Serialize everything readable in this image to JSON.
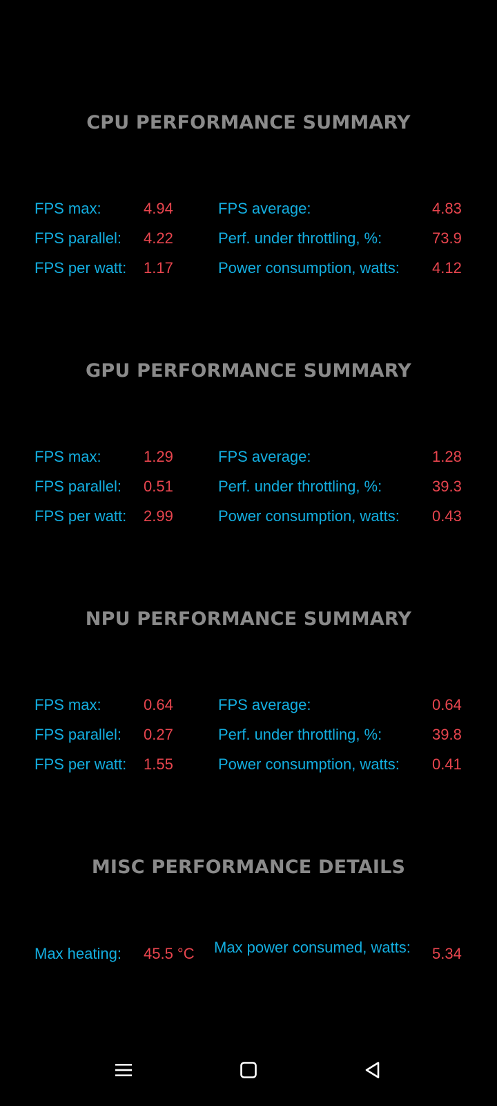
{
  "sections": [
    {
      "title": "CPU PERFORMANCE SUMMARY",
      "rows": [
        {
          "left_label": "FPS max:",
          "left_value": "4.94",
          "right_label": "FPS average:",
          "right_value": "4.83"
        },
        {
          "left_label": "FPS parallel:",
          "left_value": "4.22",
          "right_label": "Perf. under throttling, %:",
          "right_value": "73.9"
        },
        {
          "left_label": "FPS per watt:",
          "left_value": "1.17",
          "right_label": "Power consumption, watts:",
          "right_value": "4.12"
        }
      ]
    },
    {
      "title": "GPU PERFORMANCE SUMMARY",
      "rows": [
        {
          "left_label": "FPS max:",
          "left_value": "1.29",
          "right_label": "FPS average:",
          "right_value": "1.28"
        },
        {
          "left_label": "FPS parallel:",
          "left_value": "0.51",
          "right_label": "Perf. under throttling, %:",
          "right_value": "39.3"
        },
        {
          "left_label": "FPS per watt:",
          "left_value": "2.99",
          "right_label": "Power consumption, watts:",
          "right_value": "0.43"
        }
      ]
    },
    {
      "title": "NPU PERFORMANCE SUMMARY",
      "rows": [
        {
          "left_label": "FPS max:",
          "left_value": "0.64",
          "right_label": "FPS average:",
          "right_value": "0.64"
        },
        {
          "left_label": "FPS parallel:",
          "left_value": "0.27",
          "right_label": "Perf. under throttling, %:",
          "right_value": "39.8"
        },
        {
          "left_label": "FPS per watt:",
          "left_value": "1.55",
          "right_label": "Power consumption, watts:",
          "right_value": "0.41"
        }
      ]
    }
  ],
  "misc": {
    "title": "MISC PERFORMANCE DETAILS",
    "left_label": "Max heating:",
    "left_value": "45.5 °C",
    "right_label": "Max power consumed, watts:",
    "right_value": "5.34"
  },
  "navbar": {
    "icons": [
      "menu-icon",
      "home-square-icon",
      "back-triangle-icon"
    ]
  },
  "colors": {
    "background": "#000000",
    "title": "#8a8a8a",
    "label": "#13aee0",
    "value": "#e8454e"
  }
}
